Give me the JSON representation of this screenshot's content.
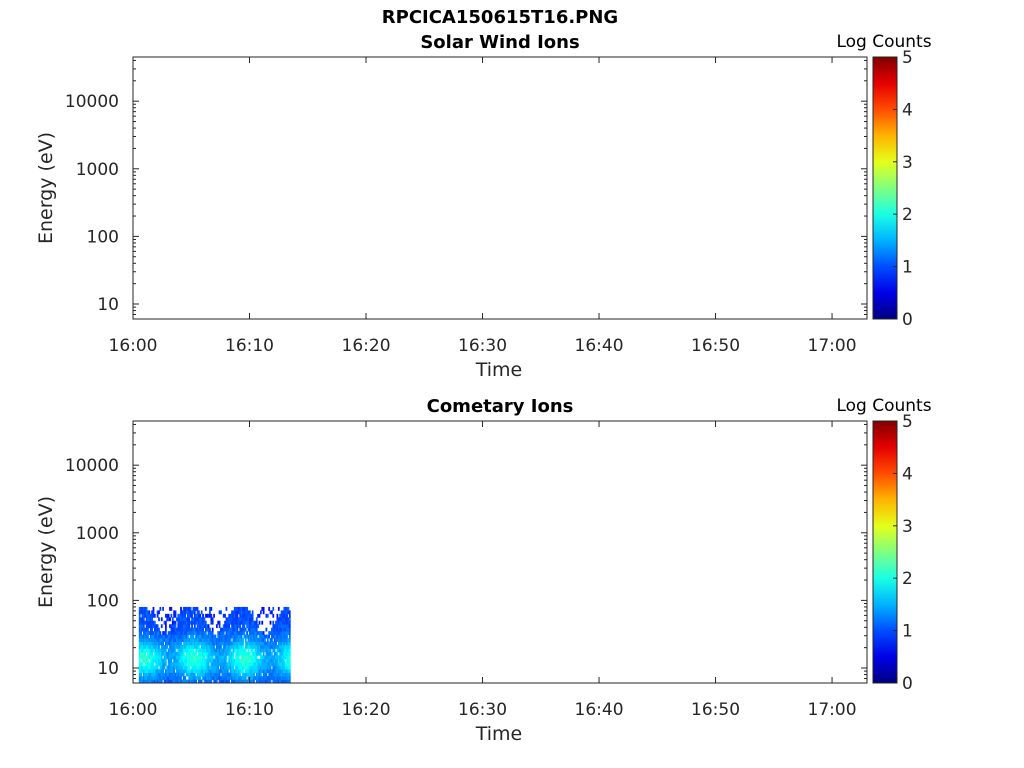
{
  "figure": {
    "title": "RPCICA150615T16.PNG"
  },
  "chart_data": [
    {
      "type": "heatmap",
      "title": "Solar Wind Ions",
      "xlabel": "Time",
      "ylabel": "Energy (eV)",
      "x_ticks": [
        "16:00",
        "16:10",
        "16:20",
        "16:30",
        "16:40",
        "16:50",
        "17:00"
      ],
      "y_scale": "log",
      "y_ticks": [
        10,
        100,
        1000,
        10000
      ],
      "ylim": [
        6,
        45000
      ],
      "xlim": [
        "16:00",
        "17:03"
      ],
      "colorbar": {
        "label": "Log Counts",
        "ticks": [
          0,
          1,
          2,
          3,
          4,
          5
        ],
        "range": [
          0,
          5
        ],
        "colormap": "jet"
      },
      "data": []
    },
    {
      "type": "heatmap",
      "title": "Cometary Ions",
      "xlabel": "Time",
      "ylabel": "Energy (eV)",
      "x_ticks": [
        "16:00",
        "16:10",
        "16:20",
        "16:30",
        "16:40",
        "16:50",
        "17:00"
      ],
      "y_scale": "log",
      "y_ticks": [
        10,
        100,
        1000,
        10000
      ],
      "ylim": [
        6,
        45000
      ],
      "xlim": [
        "16:00",
        "17:03"
      ],
      "colorbar": {
        "label": "Log Counts",
        "ticks": [
          0,
          1,
          2,
          3,
          4,
          5
        ],
        "range": [
          0,
          5
        ],
        "colormap": "jet"
      },
      "data_extent": {
        "time_start": "16:00.5",
        "time_end": "16:13.5",
        "energy_min": 6,
        "energy_max": 80
      },
      "data_summary": "Counts between about 1 and 2.2 log counts at energies below ~80 eV from 16:00 to ~16:13"
    }
  ]
}
